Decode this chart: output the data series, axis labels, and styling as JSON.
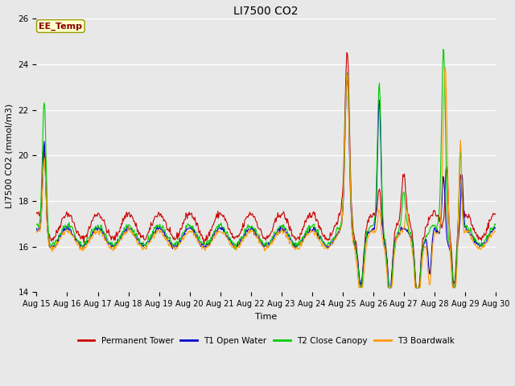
{
  "title": "LI7500 CO2",
  "ylabel": "LI7500 CO2 (mmol/m3)",
  "xlabel": "Time",
  "ylim": [
    14,
    26
  ],
  "annotation": "EE_Temp",
  "background_color": "#e8e8e8",
  "series_colors": {
    "Permanent Tower": "#cc0000",
    "T1 Open Water": "#0000cc",
    "T2 Close Canopy": "#00cc00",
    "T3 Boardwalk": "#ff9900"
  },
  "xtick_labels": [
    "Aug 15",
    "Aug 16",
    "Aug 17",
    "Aug 18",
    "Aug 19",
    "Aug 20",
    "Aug 21",
    "Aug 22",
    "Aug 23",
    "Aug 24",
    "Aug 25",
    "Aug 26",
    "Aug 27",
    "Aug 28",
    "Aug 29",
    "Aug 30"
  ],
  "ytick_labels": [
    14,
    16,
    18,
    20,
    22,
    24,
    26
  ],
  "seed": 42
}
